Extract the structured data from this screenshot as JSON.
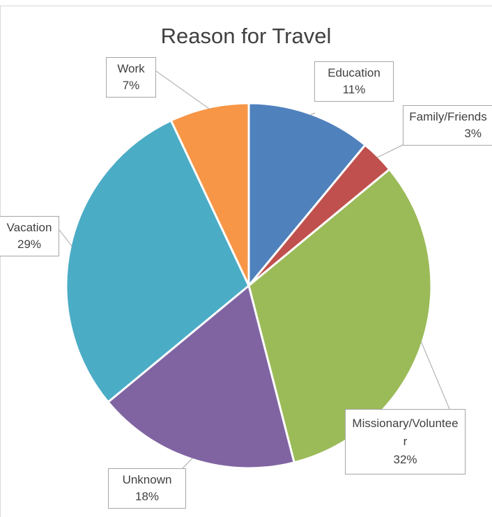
{
  "chart_data": {
    "type": "pie",
    "title": "Reason for Travel",
    "slices": [
      {
        "label": "Education",
        "value": 11,
        "pct_label": "11%",
        "color": "#4F81BD"
      },
      {
        "label": "Family/Friends",
        "value": 3,
        "pct_label": "3%",
        "color": "#C0504D"
      },
      {
        "label": "Missionary/Volunteer",
        "value": 32,
        "pct_label": "32%",
        "color": "#9BBB59"
      },
      {
        "label": "Unknown",
        "value": 18,
        "pct_label": "18%",
        "color": "#8064A2"
      },
      {
        "label": "Vacation",
        "value": 29,
        "pct_label": "29%",
        "color": "#4BACC6"
      },
      {
        "label": "Work",
        "value": 7,
        "pct_label": "7%",
        "color": "#F79646"
      }
    ]
  }
}
